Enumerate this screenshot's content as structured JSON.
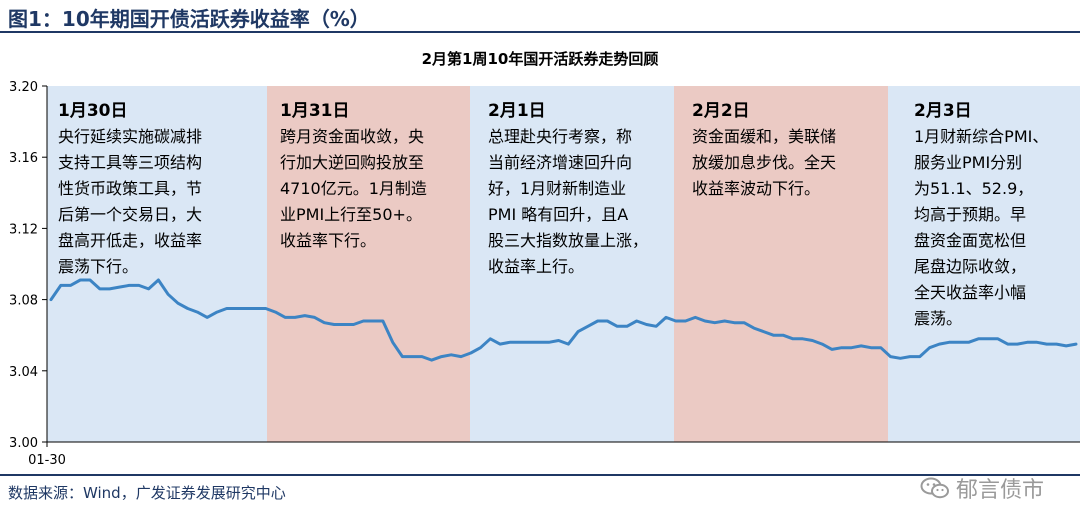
{
  "figure_title": "图1：10年期国开债活跃券收益率（%）",
  "source_text": "数据来源：Wind，广发证券发展研究中心",
  "watermark_text": "郁言债市",
  "colors": {
    "line": "#3c84c4",
    "blue_band": "#dae7f5",
    "red_band": "#ebcac4",
    "title_blue": "#1f3864"
  },
  "chart_data": {
    "type": "line",
    "title": "2月第1周10年国开活跃券走势回顾",
    "ylim": [
      3.0,
      3.2
    ],
    "y_ticks": [
      "3.20",
      "3.16",
      "3.12",
      "3.08",
      "3.04",
      "3.00"
    ],
    "x_tick_labels": [
      "01-30"
    ],
    "legend": "none",
    "grid": false,
    "bands": [
      {
        "label": "1月30日",
        "color": "blue",
        "text": [
          "央行延续实施碳减排",
          "支持工具等三项结构",
          "性货币政策工具，节",
          "后第一个交易日，大",
          "盘高开低走，收益率",
          "震荡下行。"
        ]
      },
      {
        "label": "1月31日",
        "color": "red",
        "text": [
          "跨月资金面收敛，央",
          "行加大逆回购投放至",
          "4710亿元。1月制造",
          "业PMI上行至50+。",
          "收益率下行。"
        ]
      },
      {
        "label": "2月1日",
        "color": "blue",
        "text": [
          "总理赴央行考察，称",
          "当前经济增速回升向",
          "好，1月财新制造业",
          "PMI 略有回升，且A",
          "股三大指数放量上涨，",
          "收益率上行。"
        ]
      },
      {
        "label": "2月2日",
        "color": "red",
        "text": [
          "资金面缓和，美联储",
          "放缓加息步伐。全天",
          "收益率波动下行。"
        ]
      },
      {
        "label": "2月3日",
        "color": "blue",
        "text": [
          "1月财新综合PMI、",
          "服务业PMI分别",
          "为51.1、52.9，",
          "均高于预期。早",
          "盘资金面宽松但",
          "尾盘边际收敛，",
          "全天收益率小幅",
          "震荡。"
        ]
      }
    ],
    "series": [
      {
        "values": [
          3.08,
          3.088,
          3.088,
          3.091,
          3.091,
          3.086,
          3.086,
          3.087,
          3.088,
          3.088,
          3.086,
          3.091,
          3.083,
          3.078,
          3.075,
          3.073,
          3.07,
          3.073,
          3.075,
          3.075,
          3.075,
          3.075,
          3.075,
          3.073,
          3.07,
          3.07,
          3.071,
          3.07,
          3.067,
          3.066,
          3.066,
          3.066,
          3.068,
          3.068,
          3.068,
          3.056,
          3.048,
          3.048,
          3.048,
          3.046,
          3.048,
          3.049,
          3.048,
          3.05,
          3.053,
          3.058,
          3.055,
          3.056,
          3.056,
          3.056,
          3.056,
          3.056,
          3.057,
          3.055,
          3.062,
          3.065,
          3.068,
          3.068,
          3.065,
          3.065,
          3.068,
          3.066,
          3.065,
          3.07,
          3.068,
          3.068,
          3.07,
          3.068,
          3.067,
          3.068,
          3.067,
          3.067,
          3.064,
          3.062,
          3.06,
          3.06,
          3.058,
          3.058,
          3.057,
          3.055,
          3.052,
          3.053,
          3.053,
          3.054,
          3.053,
          3.053,
          3.048,
          3.047,
          3.048,
          3.048,
          3.053,
          3.055,
          3.056,
          3.056,
          3.056,
          3.058,
          3.058,
          3.058,
          3.055,
          3.055,
          3.056,
          3.056,
          3.055,
          3.055,
          3.054,
          3.055
        ]
      }
    ]
  }
}
